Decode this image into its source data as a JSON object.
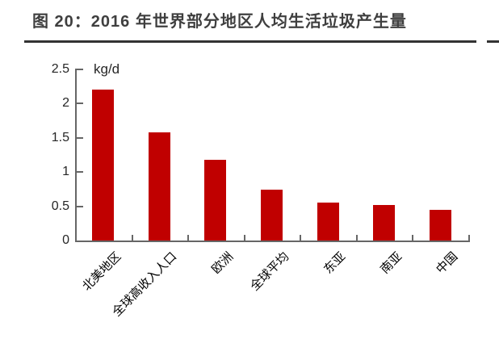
{
  "title": {
    "text": "图 20：2016 年世界部分地区人均生活垃圾产生量"
  },
  "chart_data": {
    "type": "bar",
    "title": "图 20：2016 年世界部分地区人均生活垃圾产生量",
    "unit": "kg/d",
    "categories": [
      "北美地区",
      "全球高收入人口",
      "欧洲",
      "全球平均",
      "东亚",
      "南亚",
      "中国"
    ],
    "values": [
      2.21,
      1.58,
      1.18,
      0.74,
      0.56,
      0.52,
      0.45
    ],
    "xlabel": "",
    "ylabel": "kg/d",
    "ylim": [
      0,
      2.5
    ],
    "yticks": [
      0,
      0.5,
      1,
      1.5,
      2,
      2.5
    ],
    "grid": false,
    "legend": "none",
    "bar_color": "#c00000",
    "axis_color": "#666666",
    "title_color": "#3f3f3f",
    "underline_color": "#333333"
  }
}
